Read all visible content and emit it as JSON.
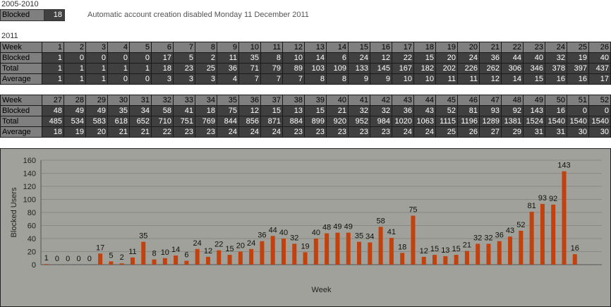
{
  "header": {
    "period_1": "2005-2010",
    "blocked_label": "Blocked",
    "blocked_value": "18",
    "notice": "Automatic account creation disabled Monday 11 December 2011",
    "period_2": "2011"
  },
  "table_rows": [
    "Week",
    "Blocked",
    "Total",
    "Average"
  ],
  "chart_data": {
    "type": "bar",
    "xlabel": "Week",
    "ylabel": "Blocked Users",
    "ylim": [
      0,
      160
    ],
    "yticks": [
      0,
      20,
      40,
      60,
      80,
      100,
      120,
      140,
      160
    ],
    "grid": true,
    "bar_color": "#c2410c",
    "weeks": [
      1,
      2,
      3,
      4,
      5,
      6,
      7,
      8,
      9,
      10,
      11,
      12,
      13,
      14,
      15,
      16,
      17,
      18,
      19,
      20,
      21,
      22,
      23,
      24,
      25,
      26,
      27,
      28,
      29,
      30,
      31,
      32,
      33,
      34,
      35,
      36,
      37,
      38,
      39,
      40,
      41,
      42,
      43,
      44,
      45,
      46,
      47,
      48,
      49,
      50,
      51,
      52
    ],
    "blocked": [
      1,
      0,
      0,
      0,
      0,
      17,
      5,
      2,
      11,
      35,
      8,
      10,
      14,
      6,
      24,
      12,
      22,
      15,
      20,
      24,
      36,
      44,
      40,
      32,
      19,
      40,
      48,
      49,
      49,
      35,
      34,
      58,
      41,
      18,
      75,
      12,
      15,
      13,
      15,
      21,
      32,
      32,
      36,
      43,
      52,
      81,
      93,
      92,
      143,
      16,
      0,
      0
    ],
    "total": [
      1,
      1,
      1,
      1,
      1,
      18,
      23,
      25,
      36,
      71,
      79,
      89,
      103,
      109,
      133,
      145,
      167,
      182,
      202,
      226,
      262,
      306,
      346,
      378,
      397,
      437,
      485,
      534,
      583,
      618,
      652,
      710,
      751,
      769,
      844,
      856,
      871,
      884,
      899,
      920,
      952,
      984,
      1020,
      1063,
      1115,
      1196,
      1289,
      1381,
      1524,
      1540,
      1540,
      1540
    ],
    "average": [
      1,
      1,
      1,
      0,
      0,
      3,
      3,
      3,
      4,
      7,
      7,
      7,
      8,
      8,
      9,
      9,
      10,
      10,
      11,
      11,
      12,
      14,
      15,
      16,
      16,
      17,
      18,
      19,
      20,
      21,
      21,
      22,
      23,
      23,
      24,
      24,
      24,
      23,
      23,
      23,
      23,
      23,
      24,
      24,
      25,
      26,
      27,
      29,
      31,
      31,
      30,
      30
    ],
    "bar_labels": [
      "1",
      "0",
      "0",
      "0",
      "0",
      "17",
      "5",
      "2",
      "11",
      "35",
      "8",
      "10",
      "14",
      "6",
      "24",
      "12",
      "22",
      "15",
      "20",
      "24",
      "36",
      "44",
      "40",
      "32",
      "19",
      "40",
      "48",
      "49",
      "49",
      "35",
      "34",
      "58",
      "41",
      "18",
      "75",
      "12",
      "15",
      "13",
      "15",
      "21",
      "32",
      "32",
      "36",
      "43",
      "52",
      "81",
      "93",
      "92",
      "143",
      "16",
      "",
      ""
    ]
  }
}
